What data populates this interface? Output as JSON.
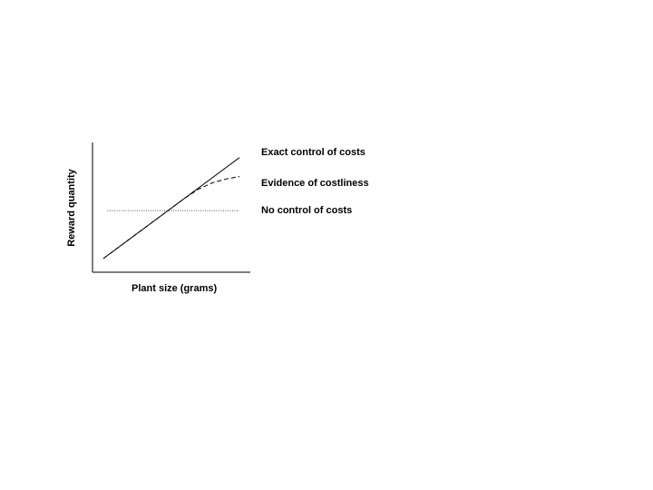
{
  "chart_data": {
    "type": "line",
    "title": "",
    "xlabel": "Plant size (grams)",
    "ylabel": "Reward quantity",
    "x_ticks": false,
    "y_ticks": false,
    "grid": false,
    "xlim": [
      0,
      10
    ],
    "ylim": [
      0,
      10
    ],
    "series": [
      {
        "name": "Exact control of costs",
        "style": "solid",
        "color": "#000000",
        "x": [
          0,
          10
        ],
        "y": [
          0.8,
          8.8
        ]
      },
      {
        "name": "Evidence of costliness",
        "style": "dashed",
        "color": "#000000",
        "x": [
          0,
          1,
          2,
          3,
          4,
          5,
          6,
          7,
          8,
          9,
          10
        ],
        "y": [
          0.8,
          1.6,
          2.4,
          3.2,
          4.0,
          4.8,
          5.6,
          6.3,
          6.8,
          7.1,
          7.3
        ]
      },
      {
        "name": "No control of costs",
        "style": "dotted",
        "color": "#555555",
        "x": [
          0.3,
          10
        ],
        "y": [
          4.6,
          4.6
        ]
      }
    ]
  }
}
